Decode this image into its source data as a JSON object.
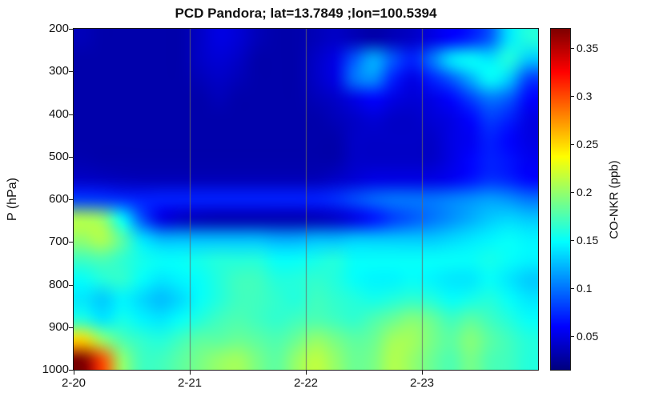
{
  "title": "PCD Pandora; lat=13.7849 ;lon=100.5394",
  "axes": {
    "ylabel": "P (hPa)",
    "y_ticks": [
      200,
      300,
      400,
      500,
      600,
      700,
      800,
      900,
      1000
    ],
    "x_ticks": [
      "2-20",
      "2-21",
      "2-22",
      "2-23"
    ],
    "gridlines": "vertical gray lines at 2-21, 2-22, 2-23"
  },
  "colorbar": {
    "label": "CO-NKR (ppb)",
    "ticks": [
      0.05,
      0.1,
      0.15,
      0.2,
      0.25,
      0.3,
      0.35
    ],
    "min": 0.015,
    "max": 0.37,
    "colormap": "jet"
  },
  "chart_data": {
    "type": "heatmap",
    "title": "PCD Pandora; lat=13.7849 ;lon=100.5394",
    "xlabel": "",
    "ylabel": "P (hPa)",
    "colorbar_label": "CO-NKR (ppb)",
    "value_units": "ppb",
    "x_tick_labels": [
      "2-20",
      "2-21",
      "2-22",
      "2-23"
    ],
    "x_days": 4,
    "columns_per_day": 6,
    "y_axis_reversed": true,
    "ylim_hPa": [
      200,
      1000
    ],
    "color_range": [
      0.015,
      0.37
    ],
    "colormap": "jet",
    "grid": "vertical day lines on",
    "legend": "colorbar right",
    "pressure_levels_hPa": [
      200,
      250,
      300,
      350,
      400,
      450,
      500,
      550,
      600,
      650,
      700,
      750,
      800,
      850,
      900,
      950,
      1000
    ],
    "values_ppb": [
      [
        0.035,
        0.03,
        0.03,
        0.03,
        0.03,
        0.03,
        0.04,
        0.05,
        0.045,
        0.035,
        0.03,
        0.03,
        0.035,
        0.04,
        0.035,
        0.03,
        0.035,
        0.04,
        0.05,
        0.06,
        0.07,
        0.09,
        0.14,
        0.16
      ],
      [
        0.03,
        0.03,
        0.03,
        0.03,
        0.03,
        0.03,
        0.04,
        0.045,
        0.04,
        0.03,
        0.03,
        0.03,
        0.04,
        0.05,
        0.09,
        0.12,
        0.09,
        0.07,
        0.1,
        0.14,
        0.15,
        0.14,
        0.16,
        0.13
      ],
      [
        0.03,
        0.03,
        0.03,
        0.03,
        0.03,
        0.03,
        0.035,
        0.04,
        0.035,
        0.03,
        0.03,
        0.03,
        0.04,
        0.05,
        0.1,
        0.11,
        0.07,
        0.05,
        0.07,
        0.09,
        0.12,
        0.15,
        0.13,
        0.08
      ],
      [
        0.03,
        0.03,
        0.03,
        0.03,
        0.03,
        0.03,
        0.03,
        0.035,
        0.03,
        0.03,
        0.03,
        0.03,
        0.035,
        0.04,
        0.05,
        0.06,
        0.05,
        0.045,
        0.05,
        0.06,
        0.08,
        0.1,
        0.09,
        0.06
      ],
      [
        0.03,
        0.03,
        0.03,
        0.03,
        0.03,
        0.03,
        0.03,
        0.03,
        0.03,
        0.03,
        0.03,
        0.03,
        0.03,
        0.035,
        0.04,
        0.045,
        0.04,
        0.04,
        0.045,
        0.05,
        0.06,
        0.08,
        0.07,
        0.05
      ],
      [
        0.03,
        0.03,
        0.03,
        0.03,
        0.03,
        0.03,
        0.03,
        0.03,
        0.03,
        0.03,
        0.03,
        0.03,
        0.03,
        0.03,
        0.04,
        0.04,
        0.04,
        0.04,
        0.04,
        0.05,
        0.055,
        0.07,
        0.06,
        0.05
      ],
      [
        0.032,
        0.03,
        0.03,
        0.03,
        0.03,
        0.03,
        0.03,
        0.03,
        0.03,
        0.03,
        0.03,
        0.03,
        0.03,
        0.03,
        0.04,
        0.04,
        0.04,
        0.04,
        0.04,
        0.05,
        0.06,
        0.07,
        0.065,
        0.055
      ],
      [
        0.04,
        0.038,
        0.036,
        0.035,
        0.035,
        0.035,
        0.035,
        0.035,
        0.035,
        0.035,
        0.035,
        0.035,
        0.035,
        0.04,
        0.045,
        0.05,
        0.05,
        0.05,
        0.05,
        0.055,
        0.065,
        0.075,
        0.07,
        0.06
      ],
      [
        0.08,
        0.078,
        0.075,
        0.07,
        0.07,
        0.07,
        0.07,
        0.07,
        0.07,
        0.07,
        0.07,
        0.07,
        0.07,
        0.075,
        0.085,
        0.095,
        0.1,
        0.1,
        0.1,
        0.105,
        0.11,
        0.115,
        0.11,
        0.1
      ],
      [
        0.21,
        0.2,
        0.15,
        0.09,
        0.05,
        0.04,
        0.035,
        0.033,
        0.033,
        0.033,
        0.033,
        0.033,
        0.035,
        0.04,
        0.05,
        0.065,
        0.08,
        0.09,
        0.1,
        0.11,
        0.12,
        0.13,
        0.135,
        0.13
      ],
      [
        0.2,
        0.21,
        0.18,
        0.14,
        0.125,
        0.125,
        0.125,
        0.125,
        0.125,
        0.125,
        0.12,
        0.12,
        0.125,
        0.125,
        0.13,
        0.13,
        0.13,
        0.13,
        0.13,
        0.135,
        0.14,
        0.145,
        0.15,
        0.145
      ],
      [
        0.17,
        0.175,
        0.165,
        0.155,
        0.15,
        0.15,
        0.155,
        0.16,
        0.16,
        0.16,
        0.15,
        0.15,
        0.155,
        0.16,
        0.15,
        0.15,
        0.15,
        0.15,
        0.15,
        0.15,
        0.15,
        0.155,
        0.15,
        0.145
      ],
      [
        0.15,
        0.16,
        0.165,
        0.15,
        0.14,
        0.145,
        0.15,
        0.16,
        0.17,
        0.17,
        0.16,
        0.16,
        0.165,
        0.16,
        0.15,
        0.145,
        0.145,
        0.15,
        0.145,
        0.14,
        0.14,
        0.15,
        0.14,
        0.13
      ],
      [
        0.14,
        0.13,
        0.145,
        0.135,
        0.125,
        0.135,
        0.15,
        0.16,
        0.17,
        0.17,
        0.165,
        0.16,
        0.17,
        0.165,
        0.16,
        0.155,
        0.16,
        0.165,
        0.16,
        0.15,
        0.155,
        0.16,
        0.15,
        0.14
      ],
      [
        0.16,
        0.14,
        0.155,
        0.145,
        0.14,
        0.15,
        0.16,
        0.17,
        0.175,
        0.17,
        0.165,
        0.17,
        0.175,
        0.17,
        0.165,
        0.175,
        0.185,
        0.195,
        0.185,
        0.17,
        0.18,
        0.17,
        0.16,
        0.15
      ],
      [
        0.25,
        0.2,
        0.175,
        0.165,
        0.16,
        0.17,
        0.18,
        0.18,
        0.185,
        0.18,
        0.175,
        0.185,
        0.2,
        0.19,
        0.18,
        0.185,
        0.205,
        0.205,
        0.19,
        0.18,
        0.195,
        0.18,
        0.17,
        0.16
      ],
      [
        0.37,
        0.3,
        0.2,
        0.17,
        0.17,
        0.18,
        0.19,
        0.2,
        0.205,
        0.19,
        0.18,
        0.2,
        0.215,
        0.2,
        0.185,
        0.19,
        0.21,
        0.2,
        0.185,
        0.175,
        0.19,
        0.175,
        0.17,
        0.16
      ]
    ]
  }
}
